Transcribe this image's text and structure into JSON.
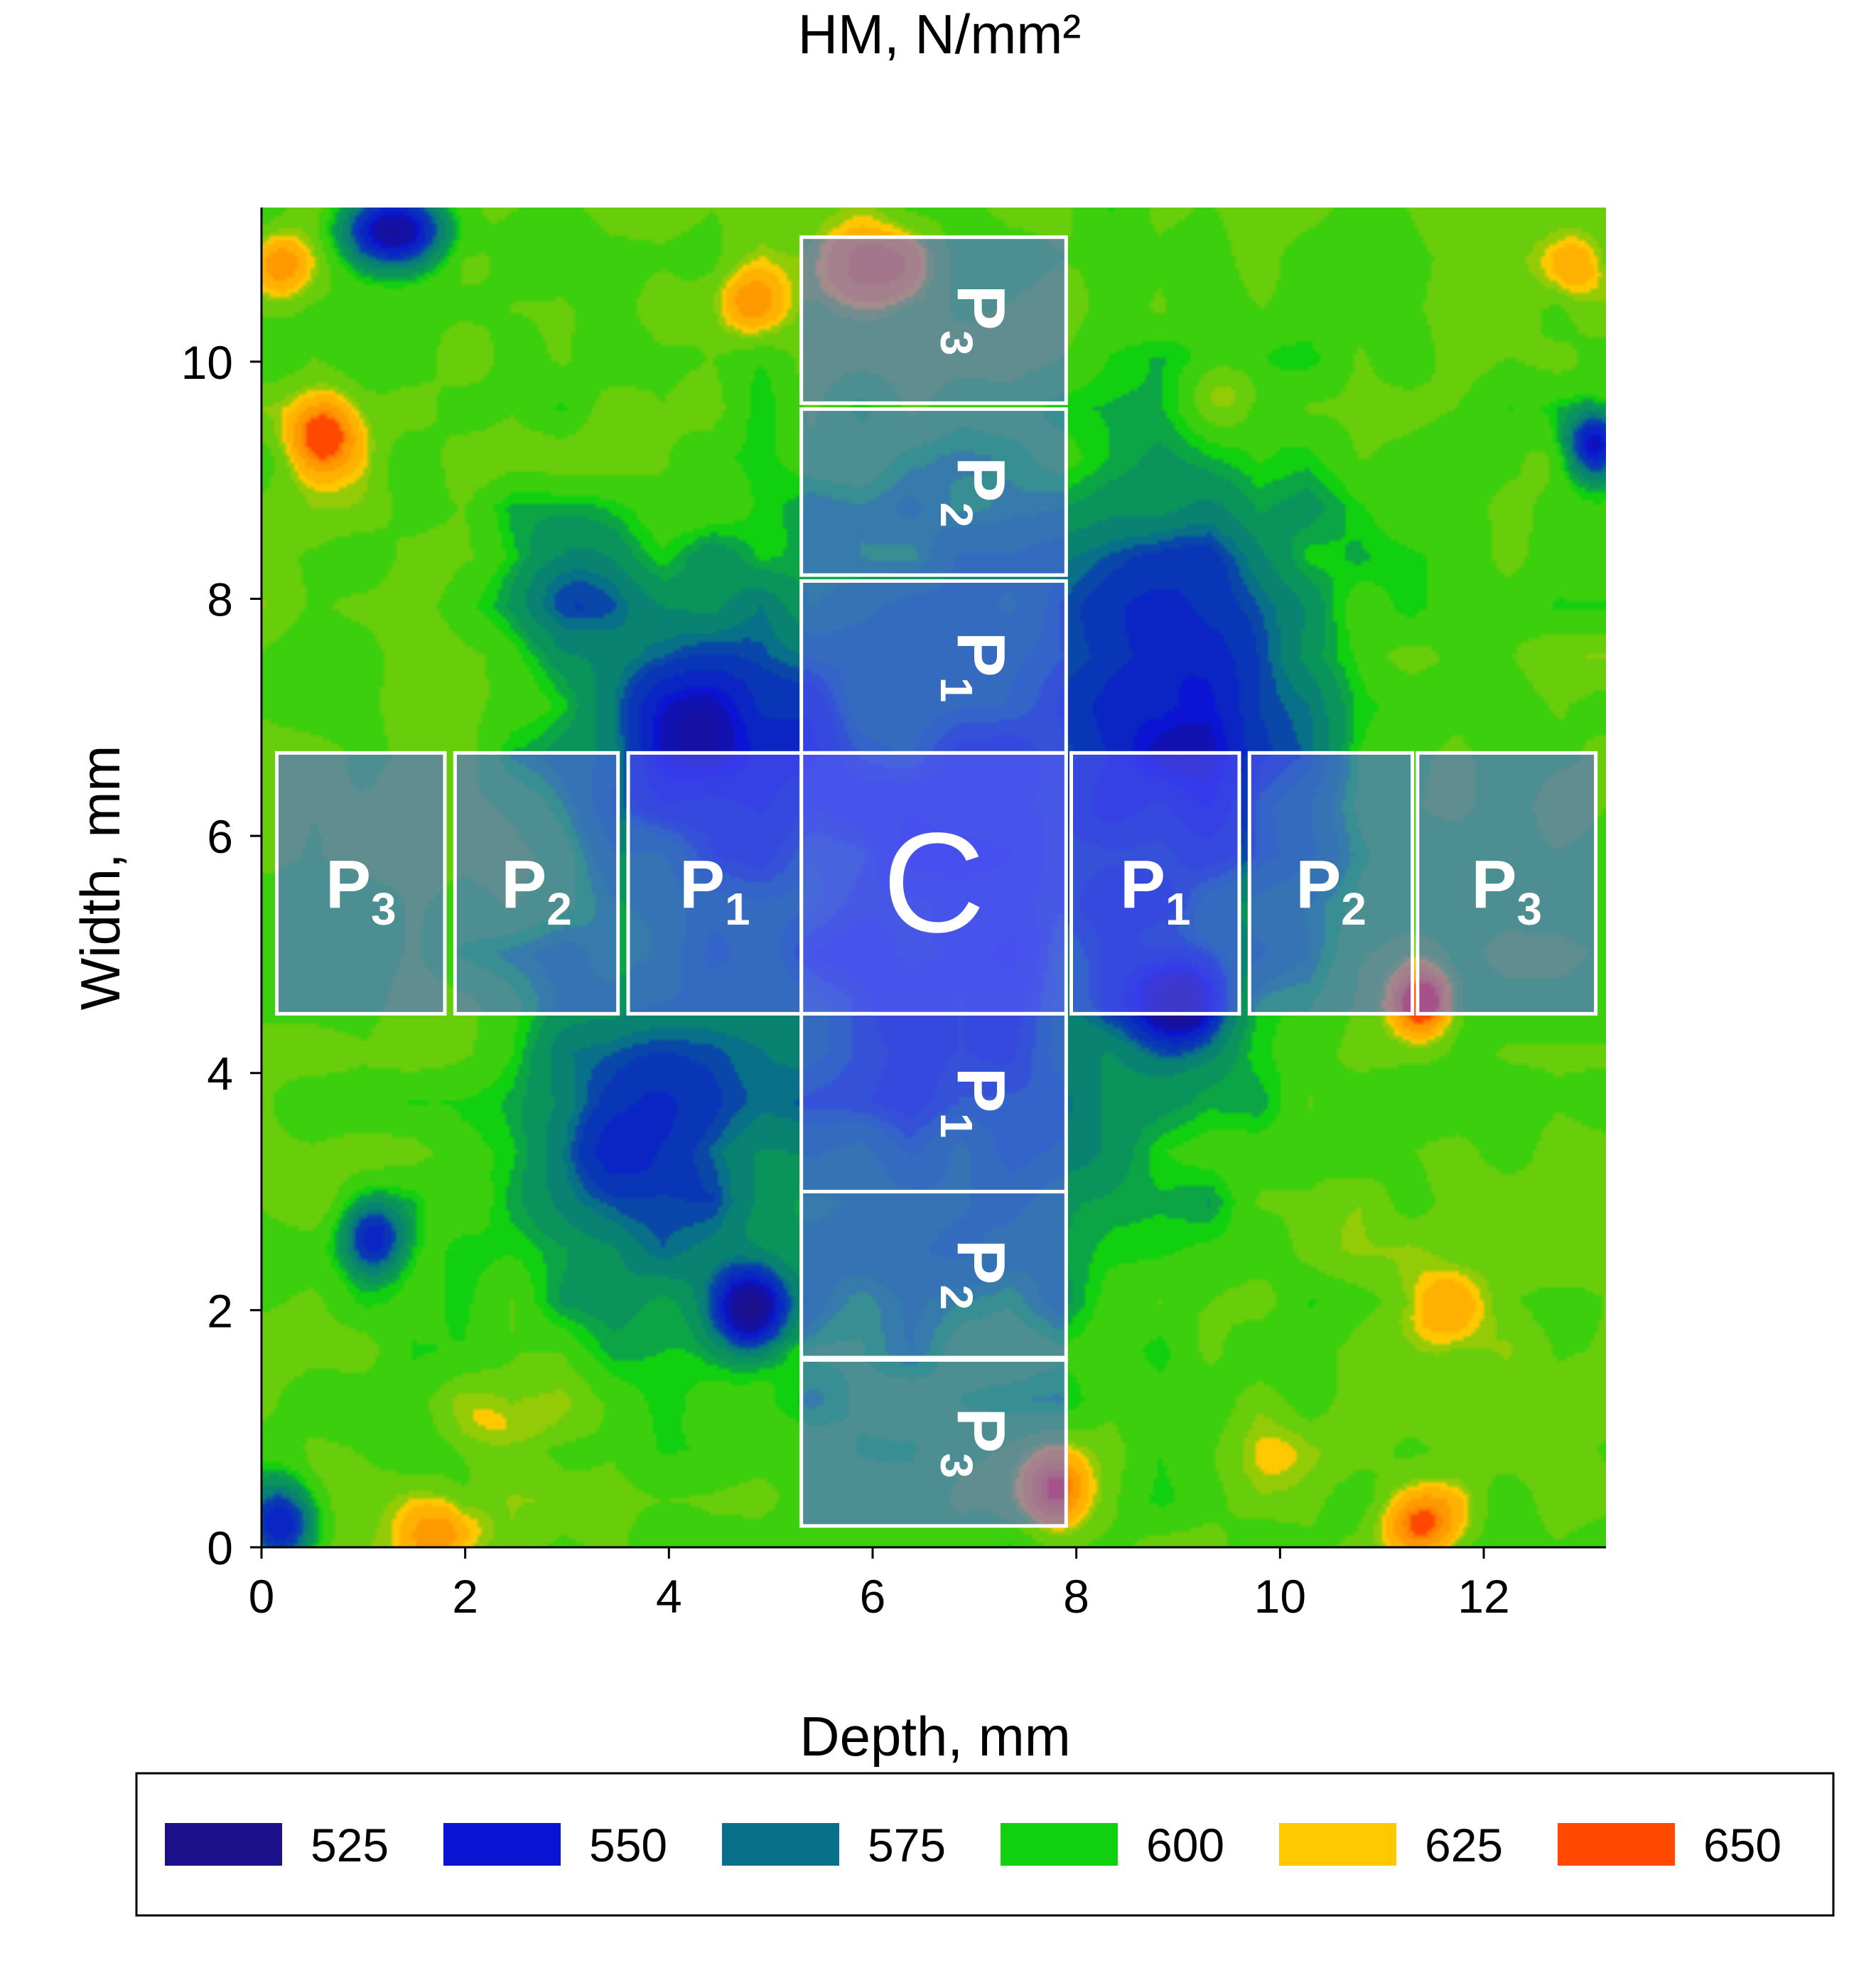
{
  "chart_data": {
    "type": "heatmap",
    "title": "HM, N/mm²",
    "xlabel": "Depth, mm",
    "ylabel": "Width, mm",
    "xlim": [
      0,
      13.2
    ],
    "ylim": [
      0,
      11.3
    ],
    "xticks": [
      0,
      2,
      4,
      6,
      8,
      10,
      12
    ],
    "yticks": [
      0,
      2,
      4,
      6,
      8,
      10
    ],
    "legend": {
      "placement": "bottom",
      "levels": [
        {
          "value": 525,
          "color": "#1c0f8a"
        },
        {
          "value": 550,
          "color": "#0a14d2"
        },
        {
          "value": 575,
          "color": "#087088"
        },
        {
          "value": 600,
          "color": "#10d010"
        },
        {
          "value": 625,
          "color": "#ffc800"
        },
        {
          "value": 650,
          "color": "#ff4800"
        }
      ]
    },
    "field": {
      "background": 600,
      "features": [
        {
          "x": 6.6,
          "y": 5.3,
          "value": 552,
          "sx": 2.6,
          "sy": 3.0
        },
        {
          "x": 9.2,
          "y": 7.2,
          "value": 550,
          "sx": 1.3,
          "sy": 1.7
        },
        {
          "x": 4.2,
          "y": 7.0,
          "value": 553,
          "sx": 1.1,
          "sy": 1.0
        },
        {
          "x": 3.6,
          "y": 3.4,
          "value": 556,
          "sx": 1.1,
          "sy": 1.2
        },
        {
          "x": 4.8,
          "y": 2.0,
          "value": 528,
          "sx": 0.35,
          "sy": 0.35
        },
        {
          "x": 9.0,
          "y": 4.6,
          "value": 530,
          "sx": 0.45,
          "sy": 0.35
        },
        {
          "x": 1.3,
          "y": 11.1,
          "value": 528,
          "sx": 0.5,
          "sy": 0.3
        },
        {
          "x": 13.1,
          "y": 9.3,
          "value": 528,
          "sx": 0.3,
          "sy": 0.3
        },
        {
          "x": 1.1,
          "y": 2.6,
          "value": 545,
          "sx": 0.3,
          "sy": 0.3
        },
        {
          "x": 0.2,
          "y": 0.2,
          "value": 540,
          "sx": 0.35,
          "sy": 0.35
        },
        {
          "x": 3.0,
          "y": 8.2,
          "value": 570,
          "sx": 0.7,
          "sy": 0.6
        },
        {
          "x": 0.6,
          "y": 9.4,
          "value": 648,
          "sx": 0.35,
          "sy": 0.35
        },
        {
          "x": 11.4,
          "y": 4.6,
          "value": 652,
          "sx": 0.3,
          "sy": 0.3
        },
        {
          "x": 7.8,
          "y": 0.5,
          "value": 640,
          "sx": 0.35,
          "sy": 0.35
        },
        {
          "x": 11.4,
          "y": 0.2,
          "value": 640,
          "sx": 0.4,
          "sy": 0.3
        },
        {
          "x": 6.0,
          "y": 10.8,
          "value": 628,
          "sx": 0.6,
          "sy": 0.4
        },
        {
          "x": 4.8,
          "y": 10.5,
          "value": 628,
          "sx": 0.35,
          "sy": 0.3
        },
        {
          "x": 1.8,
          "y": 0.1,
          "value": 632,
          "sx": 0.4,
          "sy": 0.3
        },
        {
          "x": 0.2,
          "y": 10.8,
          "value": 625,
          "sx": 0.3,
          "sy": 0.3
        },
        {
          "x": 12.9,
          "y": 10.8,
          "value": 625,
          "sx": 0.35,
          "sy": 0.3
        },
        {
          "x": 11.5,
          "y": 2.0,
          "value": 622,
          "sx": 0.5,
          "sy": 0.4
        },
        {
          "x": 2.4,
          "y": 1.0,
          "value": 618,
          "sx": 0.6,
          "sy": 0.35
        },
        {
          "x": 10.0,
          "y": 0.8,
          "value": 615,
          "sx": 0.6,
          "sy": 0.35
        },
        {
          "x": 9.5,
          "y": 9.7,
          "value": 620,
          "sx": 0.4,
          "sy": 0.3
        },
        {
          "x": 10.5,
          "y": 2.6,
          "value": 605,
          "sx": 0.4,
          "sy": 0.4
        }
      ]
    },
    "regions": [
      {
        "id": "C",
        "label": "C",
        "sub": "",
        "x0": 5.3,
        "x1": 7.9,
        "y0": 4.5,
        "y1": 6.7,
        "rotate": false,
        "large": true
      },
      {
        "id": "L1",
        "label": "P",
        "sub": "1",
        "x0": 3.6,
        "x1": 5.3,
        "y0": 4.5,
        "y1": 6.7,
        "rotate": false
      },
      {
        "id": "L2",
        "label": "P",
        "sub": "2",
        "x0": 1.9,
        "x1": 3.5,
        "y0": 4.5,
        "y1": 6.7,
        "rotate": false
      },
      {
        "id": "L3",
        "label": "P",
        "sub": "3",
        "x0": 0.15,
        "x1": 1.8,
        "y0": 4.5,
        "y1": 6.7,
        "rotate": false
      },
      {
        "id": "R1",
        "label": "P",
        "sub": "1",
        "x0": 7.95,
        "x1": 9.6,
        "y0": 4.5,
        "y1": 6.7,
        "rotate": false
      },
      {
        "id": "R2",
        "label": "P",
        "sub": "2",
        "x0": 9.7,
        "x1": 11.3,
        "y0": 4.5,
        "y1": 6.7,
        "rotate": false
      },
      {
        "id": "R3",
        "label": "P",
        "sub": "3",
        "x0": 11.35,
        "x1": 13.1,
        "y0": 4.5,
        "y1": 6.7,
        "rotate": false
      },
      {
        "id": "T1",
        "label": "P",
        "sub": "1",
        "x0": 5.3,
        "x1": 7.9,
        "y0": 6.7,
        "y1": 8.15,
        "rotate": true
      },
      {
        "id": "T2",
        "label": "P",
        "sub": "2",
        "x0": 5.3,
        "x1": 7.9,
        "y0": 8.2,
        "y1": 9.6,
        "rotate": true
      },
      {
        "id": "T3",
        "label": "P",
        "sub": "3",
        "x0": 5.3,
        "x1": 7.9,
        "y0": 9.65,
        "y1": 11.05,
        "rotate": true
      },
      {
        "id": "B1",
        "label": "P",
        "sub": "1",
        "x0": 5.3,
        "x1": 7.9,
        "y0": 3.0,
        "y1": 4.5,
        "rotate": true
      },
      {
        "id": "B2",
        "label": "P",
        "sub": "2",
        "x0": 5.3,
        "x1": 7.9,
        "y0": 1.6,
        "y1": 3.0,
        "rotate": true
      },
      {
        "id": "B3",
        "label": "P",
        "sub": "3",
        "x0": 5.3,
        "x1": 7.9,
        "y0": 0.18,
        "y1": 1.58,
        "rotate": true
      }
    ]
  }
}
